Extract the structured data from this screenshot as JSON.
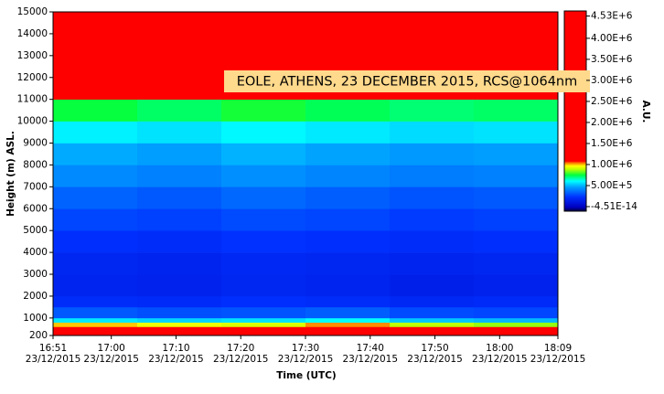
{
  "chart_data": {
    "type": "heatmap",
    "title": "EOLE, ATHENS, 23 DECEMBER 2015, RCS@1064nm",
    "x_label": "Time (UTC)",
    "y_label": "Height (m) ASL.",
    "colorbar_label": "A.U.",
    "x": [
      "2015-12-23T16:51",
      "2015-12-23T17:04",
      "2015-12-23T17:17",
      "2015-12-23T17:30",
      "2015-12-23T17:43",
      "2015-12-23T17:56",
      "2015-12-23T18:09"
    ],
    "y": [
      200,
      400,
      600,
      800,
      1000,
      1500,
      2000,
      3000,
      4000,
      5000,
      6000,
      7000,
      8000,
      9000,
      10000,
      11000,
      12000,
      13000,
      14000,
      15000
    ],
    "z": [
      [
        4300000,
        4200000,
        4100000,
        4400000,
        4000000,
        3900000
      ],
      [
        2600000,
        2400000,
        2500000,
        2700000,
        2300000,
        2200000
      ],
      [
        1050000,
        1000000,
        980000,
        1080000,
        950000,
        920000
      ],
      [
        650000,
        620000,
        640000,
        680000,
        600000,
        580000
      ],
      [
        400000,
        380000,
        390000,
        410000,
        370000,
        360000
      ],
      [
        300000,
        290000,
        310000,
        300000,
        280000,
        290000
      ],
      [
        260000,
        250000,
        270000,
        260000,
        240000,
        250000
      ],
      [
        270000,
        260000,
        280000,
        270000,
        260000,
        270000
      ],
      [
        310000,
        300000,
        320000,
        310000,
        300000,
        310000
      ],
      [
        360000,
        350000,
        370000,
        360000,
        340000,
        350000
      ],
      [
        420000,
        400000,
        430000,
        410000,
        390000,
        400000
      ],
      [
        500000,
        480000,
        510000,
        490000,
        470000,
        480000
      ],
      [
        560000,
        540000,
        570000,
        550000,
        530000,
        540000
      ],
      [
        660000,
        640000,
        670000,
        650000,
        630000,
        640000
      ],
      [
        820000,
        790000,
        830000,
        800000,
        780000,
        790000
      ],
      [
        1250000,
        1200000,
        1300000,
        1220000,
        1180000,
        1200000
      ],
      [
        2000000,
        1900000,
        2100000,
        1950000,
        1850000,
        1900000
      ],
      [
        2600000,
        2500000,
        2700000,
        2550000,
        2450000,
        2500000
      ],
      [
        3100000,
        3000000,
        3200000,
        3050000,
        2950000,
        3000000
      ]
    ],
    "xlim": [
      "2015-12-23T16:51",
      "2015-12-23T18:09"
    ],
    "xticks": [
      {
        "value": "2015-12-23T16:51",
        "label": "16:51\n23/12/2015"
      },
      {
        "value": "2015-12-23T17:00",
        "label": "17:00\n23/12/2015"
      },
      {
        "value": "2015-12-23T17:10",
        "label": "17:10\n23/12/2015"
      },
      {
        "value": "2015-12-23T17:20",
        "label": "17:20\n23/12/2015"
      },
      {
        "value": "2015-12-23T17:30",
        "label": "17:30\n23/12/2015"
      },
      {
        "value": "2015-12-23T17:40",
        "label": "17:40\n23/12/2015"
      },
      {
        "value": "2015-12-23T17:50",
        "label": "17:50\n23/12/2015"
      },
      {
        "value": "2015-12-23T18:00",
        "label": "18:00\n23/12/2015"
      },
      {
        "value": "2015-12-23T18:09",
        "label": "18:09\n23/12/2015"
      }
    ],
    "ylim": [
      200,
      15000
    ],
    "yticks": [
      200,
      1000,
      2000,
      3000,
      4000,
      5000,
      6000,
      7000,
      8000,
      9000,
      10000,
      11000,
      12000,
      13000,
      14000,
      15000
    ],
    "zlim": [
      -4.51e-14,
      4530000
    ],
    "zticks": [
      {
        "value": 4530000,
        "label": "4.53E+6"
      },
      {
        "value": 4000000,
        "label": "4.00E+6"
      },
      {
        "value": 3500000,
        "label": "3.50E+6"
      },
      {
        "value": 3000000,
        "label": "3.00E+6"
      },
      {
        "value": 2500000,
        "label": "2.50E+6"
      },
      {
        "value": 2000000,
        "label": "2.00E+6"
      },
      {
        "value": 1500000,
        "label": "1.50E+6"
      },
      {
        "value": 1000000,
        "label": "1.00E+6"
      },
      {
        "value": 500000,
        "label": "5.00E+5"
      },
      {
        "value": -4.51e-14,
        "label": "-4.51E-14"
      }
    ],
    "colorscale": [
      [
        0,
        "#000040"
      ],
      [
        0.02,
        "#0000c0"
      ],
      [
        0.07,
        "#0030ff"
      ],
      [
        0.12,
        "#00a0ff"
      ],
      [
        0.15,
        "#00ffff"
      ],
      [
        0.18,
        "#00ff40"
      ],
      [
        0.21,
        "#c0ff00"
      ],
      [
        0.225,
        "#ffff00"
      ],
      [
        0.24,
        "#ff8000"
      ],
      [
        0.25,
        "#ff0000"
      ],
      [
        1,
        "#ff0000"
      ]
    ]
  }
}
